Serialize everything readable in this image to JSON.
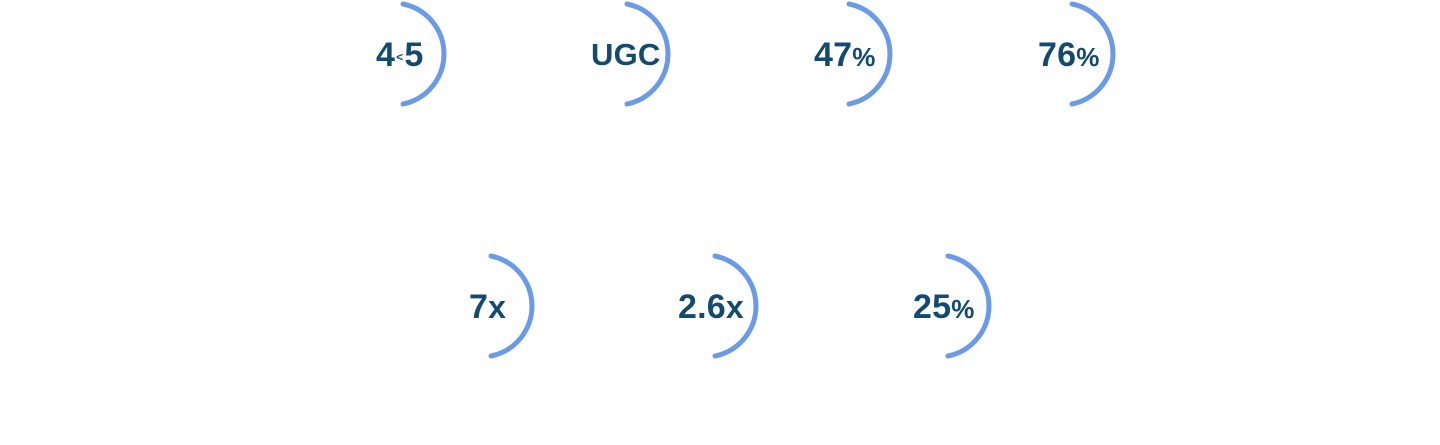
{
  "stats_row_1": [
    {
      "main": "4",
      "mid": "<",
      "tail": "5",
      "suffix": ""
    },
    {
      "main": "UGC",
      "mid": "",
      "tail": "",
      "suffix": ""
    },
    {
      "main": "47",
      "mid": "",
      "tail": "",
      "suffix": "%"
    },
    {
      "main": "76",
      "mid": "",
      "tail": "",
      "suffix": "%"
    }
  ],
  "stats_row_2": [
    {
      "main": "7",
      "mid": "",
      "tail": "",
      "suffix": "x"
    },
    {
      "main": "2.6",
      "mid": "",
      "tail": "",
      "suffix": "x"
    },
    {
      "main": "25",
      "mid": "",
      "tail": "",
      "suffix": "%"
    }
  ],
  "colors": {
    "arc": "#6b9ae8",
    "text": "#134a70"
  }
}
